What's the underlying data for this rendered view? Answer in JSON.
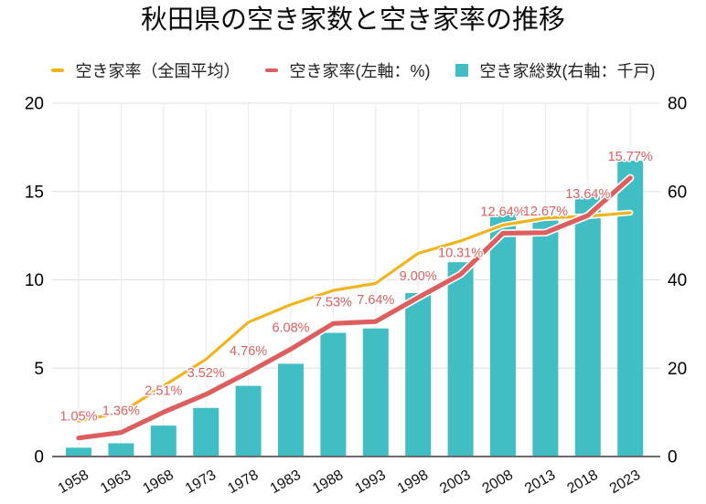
{
  "title": "秋田県の空き家数と空き家率の推移",
  "legend": [
    {
      "label": "空き家率（全国平均）",
      "marker": "dash",
      "color": "#F0B41F"
    },
    {
      "label": "空き家率(左軸：%)",
      "marker": "dash",
      "color": "#DD5E5E"
    },
    {
      "label": "空き家総数(右軸：千戸)",
      "marker": "square",
      "color": "#40BEC4"
    }
  ],
  "colors": {
    "national_line": "#F0B41F",
    "prefecture_line": "#DD5E5E",
    "bars": "#40BEC4",
    "gridline": "#e3e3e3",
    "vertical_gridline": "#ececec",
    "axis_line": "#6b6b6b",
    "label_text": "#dd5e5e"
  },
  "chart_data": {
    "type": "combo",
    "title": "秋田県の空き家数と空き家率の推移",
    "categories": [
      "1958",
      "1963",
      "1968",
      "1973",
      "1978",
      "1983",
      "1988",
      "1993",
      "1998",
      "2003",
      "2008",
      "2013",
      "2018",
      "2023"
    ],
    "series": [
      {
        "name": "空き家率（全国平均）",
        "type": "line",
        "axis": "left",
        "color": "#F0B41F",
        "values": [
          2.0,
          2.5,
          4.0,
          5.5,
          7.6,
          8.6,
          9.4,
          9.8,
          11.5,
          12.2,
          13.1,
          13.5,
          13.6,
          13.8
        ]
      },
      {
        "name": "空き家率(左軸：%)",
        "type": "line",
        "axis": "left",
        "color": "#DD5E5E",
        "values": [
          1.05,
          1.36,
          2.51,
          3.52,
          4.76,
          6.08,
          7.53,
          7.64,
          9.0,
          10.31,
          12.64,
          12.67,
          13.64,
          15.77
        ],
        "labels": [
          "1.05%",
          "1.36%",
          "2.51%",
          "3.52%",
          "4.76%",
          "6.08%",
          "7.53%",
          "7.64%",
          "9.00%",
          "10.31%",
          "12.64%",
          "12.67%",
          "13.64%",
          "15.77%"
        ]
      },
      {
        "name": "空き家総数(右軸：千戸)",
        "type": "bar",
        "axis": "right",
        "color": "#40BEC4",
        "values": [
          2,
          3,
          7,
          11,
          16,
          21,
          28,
          29,
          37,
          44,
          55,
          54,
          59,
          67
        ]
      }
    ],
    "left_axis": {
      "range": [
        0,
        20
      ],
      "ticks": [
        0,
        5,
        10,
        15,
        20
      ]
    },
    "right_axis": {
      "range": [
        0,
        80
      ],
      "ticks": [
        0,
        20,
        40,
        60,
        80
      ]
    },
    "grid": true,
    "legend_position": "top"
  }
}
